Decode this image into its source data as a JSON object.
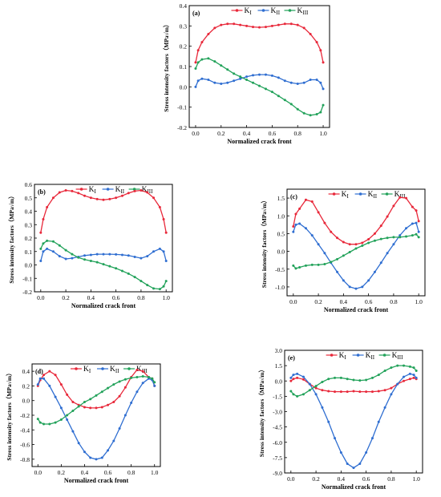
{
  "figure": {
    "xlabel": "Normalized crack front",
    "ylabel": "Stress intensity factors（MPa√m）"
  },
  "colors": {
    "KI": "#e8283a",
    "KII": "#2f6ed1",
    "KIII": "#22a25a"
  },
  "legend": [
    "KI",
    "KII",
    "KIII"
  ],
  "chart_data": [
    {
      "type": "line",
      "label": "(a)",
      "xlabel": "Normalized crack front",
      "ylabel": "Stress intensity factors（MPa√m）",
      "xlim": [
        -0.05,
        1.05
      ],
      "ylim": [
        -0.2,
        0.4
      ],
      "xticks": [
        "0.0",
        "0.2",
        "0.4",
        "0.6",
        "0.8",
        "1.0"
      ],
      "yticks": [
        "-0.2",
        "-0.1",
        "0.0",
        "0.1",
        "0.2",
        "0.3",
        "0.4"
      ],
      "legend_position": "top",
      "series": [
        {
          "name": "KI",
          "color": "#e8283a",
          "x": [
            0.0,
            0.02,
            0.05,
            0.1,
            0.15,
            0.2,
            0.25,
            0.3,
            0.35,
            0.4,
            0.45,
            0.5,
            0.55,
            0.6,
            0.65,
            0.7,
            0.75,
            0.8,
            0.85,
            0.9,
            0.95,
            0.98,
            1.0
          ],
          "y": [
            0.12,
            0.18,
            0.22,
            0.26,
            0.29,
            0.305,
            0.31,
            0.31,
            0.305,
            0.3,
            0.295,
            0.293,
            0.295,
            0.3,
            0.305,
            0.31,
            0.31,
            0.305,
            0.29,
            0.26,
            0.22,
            0.18,
            0.12
          ]
        },
        {
          "name": "KII",
          "color": "#2f6ed1",
          "x": [
            0.0,
            0.02,
            0.05,
            0.1,
            0.15,
            0.2,
            0.25,
            0.3,
            0.35,
            0.4,
            0.45,
            0.5,
            0.55,
            0.6,
            0.65,
            0.7,
            0.75,
            0.8,
            0.85,
            0.9,
            0.95,
            0.98,
            1.0
          ],
          "y": [
            0.0,
            0.03,
            0.04,
            0.035,
            0.02,
            0.015,
            0.02,
            0.03,
            0.04,
            0.05,
            0.057,
            0.06,
            0.06,
            0.055,
            0.045,
            0.03,
            0.02,
            0.015,
            0.02,
            0.035,
            0.035,
            0.02,
            -0.01
          ]
        },
        {
          "name": "KIII",
          "color": "#22a25a",
          "x": [
            0.0,
            0.02,
            0.05,
            0.1,
            0.15,
            0.2,
            0.25,
            0.3,
            0.35,
            0.4,
            0.45,
            0.5,
            0.55,
            0.6,
            0.65,
            0.7,
            0.75,
            0.8,
            0.85,
            0.9,
            0.95,
            0.98,
            1.0
          ],
          "y": [
            0.09,
            0.12,
            0.135,
            0.14,
            0.125,
            0.105,
            0.085,
            0.065,
            0.05,
            0.035,
            0.02,
            0.005,
            -0.01,
            -0.025,
            -0.045,
            -0.065,
            -0.085,
            -0.11,
            -0.13,
            -0.14,
            -0.135,
            -0.125,
            -0.09
          ]
        }
      ]
    },
    {
      "type": "line",
      "label": "(b)",
      "xlabel": "Normalized crack front",
      "ylabel": "Stress intensity factors（MPa√m）",
      "xlim": [
        -0.05,
        1.05
      ],
      "ylim": [
        -0.2,
        0.6
      ],
      "xticks": [
        "0.0",
        "0.2",
        "0.4",
        "0.6",
        "0.8",
        "1.0"
      ],
      "yticks": [
        "-0.2",
        "-0.1",
        "0.0",
        "0.1",
        "0.2",
        "0.3",
        "0.4",
        "0.5",
        "0.6"
      ],
      "legend_position": "top",
      "series": [
        {
          "name": "KI",
          "color": "#e8283a",
          "x": [
            0.0,
            0.02,
            0.05,
            0.1,
            0.15,
            0.2,
            0.25,
            0.3,
            0.35,
            0.4,
            0.45,
            0.5,
            0.55,
            0.6,
            0.65,
            0.7,
            0.75,
            0.8,
            0.85,
            0.9,
            0.95,
            0.98,
            1.0
          ],
          "y": [
            0.24,
            0.34,
            0.43,
            0.5,
            0.54,
            0.555,
            0.55,
            0.535,
            0.515,
            0.5,
            0.49,
            0.485,
            0.49,
            0.5,
            0.515,
            0.535,
            0.55,
            0.555,
            0.54,
            0.5,
            0.43,
            0.34,
            0.24
          ]
        },
        {
          "name": "KII",
          "color": "#2f6ed1",
          "x": [
            0.0,
            0.02,
            0.05,
            0.1,
            0.15,
            0.2,
            0.25,
            0.3,
            0.35,
            0.4,
            0.45,
            0.5,
            0.55,
            0.6,
            0.65,
            0.7,
            0.75,
            0.8,
            0.85,
            0.9,
            0.95,
            0.98,
            1.0
          ],
          "y": [
            0.03,
            0.1,
            0.12,
            0.1,
            0.065,
            0.045,
            0.05,
            0.06,
            0.07,
            0.075,
            0.08,
            0.08,
            0.08,
            0.078,
            0.075,
            0.07,
            0.06,
            0.05,
            0.065,
            0.1,
            0.12,
            0.1,
            0.03
          ]
        },
        {
          "name": "KIII",
          "color": "#22a25a",
          "x": [
            0.0,
            0.02,
            0.05,
            0.1,
            0.15,
            0.2,
            0.25,
            0.3,
            0.35,
            0.4,
            0.45,
            0.5,
            0.55,
            0.6,
            0.65,
            0.7,
            0.75,
            0.8,
            0.85,
            0.9,
            0.95,
            0.98,
            1.0
          ],
          "y": [
            0.12,
            0.16,
            0.18,
            0.175,
            0.145,
            0.11,
            0.08,
            0.055,
            0.04,
            0.03,
            0.02,
            0.005,
            -0.01,
            -0.025,
            -0.045,
            -0.065,
            -0.09,
            -0.12,
            -0.15,
            -0.175,
            -0.18,
            -0.16,
            -0.12
          ]
        }
      ]
    },
    {
      "type": "line",
      "label": "(c)",
      "xlabel": "Normalized crack front",
      "ylabel": "Stress intensity factors（MPa√m）",
      "xlim": [
        -0.05,
        1.05
      ],
      "ylim": [
        -1.25,
        1.75
      ],
      "xticks": [
        "0.0",
        "0.2",
        "0.4",
        "0.6",
        "0.8",
        "1.0"
      ],
      "yticks": [
        "-1.0",
        "-0.5",
        "0.0",
        "0.5",
        "1.0",
        "1.5"
      ],
      "legend_position": "top",
      "series": [
        {
          "name": "KI",
          "color": "#e8283a",
          "x": [
            0.0,
            0.02,
            0.05,
            0.1,
            0.15,
            0.2,
            0.25,
            0.3,
            0.35,
            0.4,
            0.45,
            0.5,
            0.55,
            0.6,
            0.65,
            0.7,
            0.75,
            0.8,
            0.85,
            0.9,
            0.95,
            0.98,
            1.0
          ],
          "y": [
            0.7,
            1.05,
            1.2,
            1.45,
            1.4,
            1.1,
            0.8,
            0.55,
            0.38,
            0.26,
            0.2,
            0.2,
            0.24,
            0.34,
            0.5,
            0.72,
            0.98,
            1.28,
            1.52,
            1.5,
            1.25,
            1.15,
            0.85
          ]
        },
        {
          "name": "KII",
          "color": "#2f6ed1",
          "x": [
            0.0,
            0.02,
            0.05,
            0.1,
            0.15,
            0.2,
            0.25,
            0.3,
            0.35,
            0.4,
            0.45,
            0.5,
            0.55,
            0.6,
            0.65,
            0.7,
            0.75,
            0.8,
            0.85,
            0.9,
            0.95,
            0.98,
            1.0
          ],
          "y": [
            0.55,
            0.75,
            0.78,
            0.65,
            0.45,
            0.2,
            -0.05,
            -0.32,
            -0.58,
            -0.82,
            -1.0,
            -1.05,
            -1.0,
            -0.82,
            -0.58,
            -0.32,
            -0.05,
            0.2,
            0.45,
            0.65,
            0.78,
            0.8,
            0.55
          ]
        },
        {
          "name": "KIII",
          "color": "#22a25a",
          "x": [
            0.0,
            0.02,
            0.05,
            0.1,
            0.15,
            0.2,
            0.25,
            0.3,
            0.35,
            0.4,
            0.45,
            0.5,
            0.55,
            0.6,
            0.65,
            0.7,
            0.75,
            0.8,
            0.85,
            0.9,
            0.95,
            0.98,
            1.0
          ],
          "y": [
            -0.4,
            -0.48,
            -0.45,
            -0.4,
            -0.38,
            -0.38,
            -0.36,
            -0.3,
            -0.22,
            -0.12,
            -0.02,
            0.08,
            0.16,
            0.24,
            0.3,
            0.35,
            0.38,
            0.4,
            0.4,
            0.42,
            0.45,
            0.48,
            0.4
          ]
        }
      ]
    },
    {
      "type": "line",
      "label": "(d)",
      "xlabel": "Normalized crack front",
      "ylabel": "Stress intensity factors（MPa√m）",
      "xlim": [
        -0.05,
        1.05
      ],
      "ylim": [
        -0.9,
        0.5
      ],
      "xticks": [
        "0.0",
        "0.2",
        "0.4",
        "0.6",
        "0.8",
        "1.0"
      ],
      "yticks": [
        "-0.8",
        "-0.6",
        "-0.4",
        "-0.2",
        "0.0",
        "0.2",
        "0.4"
      ],
      "legend_position": "top",
      "series": [
        {
          "name": "KI",
          "color": "#e8283a",
          "x": [
            0.0,
            0.02,
            0.05,
            0.1,
            0.15,
            0.2,
            0.25,
            0.3,
            0.35,
            0.4,
            0.45,
            0.5,
            0.55,
            0.6,
            0.65,
            0.7,
            0.75,
            0.8,
            0.85,
            0.9,
            0.95,
            0.98,
            1.0
          ],
          "y": [
            0.2,
            0.28,
            0.35,
            0.4,
            0.35,
            0.22,
            0.08,
            -0.02,
            -0.06,
            -0.09,
            -0.1,
            -0.1,
            -0.09,
            -0.06,
            -0.02,
            0.06,
            0.18,
            0.32,
            0.42,
            0.4,
            0.32,
            0.3,
            0.2
          ]
        },
        {
          "name": "KII",
          "color": "#2f6ed1",
          "x": [
            0.0,
            0.02,
            0.05,
            0.1,
            0.15,
            0.2,
            0.25,
            0.3,
            0.35,
            0.4,
            0.45,
            0.5,
            0.55,
            0.6,
            0.65,
            0.7,
            0.75,
            0.8,
            0.85,
            0.9,
            0.95,
            0.98,
            1.0
          ],
          "y": [
            0.22,
            0.3,
            0.3,
            0.2,
            0.05,
            -0.1,
            -0.26,
            -0.42,
            -0.58,
            -0.7,
            -0.78,
            -0.8,
            -0.78,
            -0.68,
            -0.55,
            -0.38,
            -0.2,
            -0.03,
            0.12,
            0.24,
            0.3,
            0.28,
            0.2
          ]
        },
        {
          "name": "KIII",
          "color": "#22a25a",
          "x": [
            0.0,
            0.02,
            0.05,
            0.1,
            0.15,
            0.2,
            0.25,
            0.3,
            0.35,
            0.4,
            0.45,
            0.5,
            0.55,
            0.6,
            0.65,
            0.7,
            0.75,
            0.8,
            0.85,
            0.9,
            0.95,
            0.98,
            1.0
          ],
          "y": [
            -0.25,
            -0.3,
            -0.32,
            -0.32,
            -0.3,
            -0.26,
            -0.2,
            -0.14,
            -0.08,
            -0.02,
            0.02,
            0.07,
            0.12,
            0.17,
            0.22,
            0.26,
            0.29,
            0.31,
            0.32,
            0.33,
            0.32,
            0.3,
            0.25
          ]
        }
      ]
    },
    {
      "type": "line",
      "label": "(e)",
      "xlabel": "Normalized crack front",
      "ylabel": "Stress intensity factors（MPa√m）",
      "xlim": [
        -0.05,
        1.05
      ],
      "ylim": [
        -9.0,
        3.0
      ],
      "xticks": [
        "0.0",
        "0.2",
        "0.4",
        "0.6",
        "0.8",
        "1.0"
      ],
      "yticks": [
        "-9.0",
        "-7.5",
        "-6.0",
        "-4.5",
        "-3.0",
        "-1.5",
        "0.0",
        "1.5",
        "3.0"
      ],
      "legend_position": "top",
      "series": [
        {
          "name": "KI",
          "color": "#e8283a",
          "x": [
            0.0,
            0.02,
            0.05,
            0.1,
            0.15,
            0.2,
            0.25,
            0.3,
            0.35,
            0.4,
            0.45,
            0.5,
            0.55,
            0.6,
            0.65,
            0.7,
            0.75,
            0.8,
            0.85,
            0.9,
            0.95,
            0.98,
            1.0
          ],
          "y": [
            0.0,
            0.2,
            0.3,
            0.15,
            -0.3,
            -0.7,
            -0.9,
            -1.0,
            -1.05,
            -1.05,
            -1.05,
            -1.0,
            -1.05,
            -1.05,
            -1.05,
            -1.0,
            -0.9,
            -0.7,
            -0.3,
            0.0,
            0.2,
            0.3,
            0.2
          ]
        },
        {
          "name": "KII",
          "color": "#2f6ed1",
          "x": [
            0.0,
            0.02,
            0.05,
            0.1,
            0.15,
            0.2,
            0.25,
            0.3,
            0.35,
            0.4,
            0.45,
            0.5,
            0.55,
            0.6,
            0.65,
            0.7,
            0.75,
            0.8,
            0.85,
            0.9,
            0.95,
            0.98,
            1.0
          ],
          "y": [
            0.3,
            0.6,
            0.7,
            0.4,
            -0.3,
            -1.3,
            -2.6,
            -4.0,
            -5.6,
            -7.0,
            -8.1,
            -8.5,
            -8.1,
            -7.0,
            -5.6,
            -4.0,
            -2.6,
            -1.3,
            -0.3,
            0.4,
            0.7,
            0.6,
            0.3
          ]
        },
        {
          "name": "KIII",
          "color": "#22a25a",
          "x": [
            0.0,
            0.02,
            0.05,
            0.1,
            0.15,
            0.2,
            0.25,
            0.3,
            0.35,
            0.4,
            0.45,
            0.5,
            0.55,
            0.6,
            0.65,
            0.7,
            0.75,
            0.8,
            0.85,
            0.9,
            0.95,
            0.98,
            1.0
          ],
          "y": [
            -1.0,
            -1.3,
            -1.5,
            -1.3,
            -0.9,
            -0.5,
            -0.1,
            0.2,
            0.3,
            0.3,
            0.2,
            0.1,
            0.05,
            0.1,
            0.3,
            0.6,
            1.0,
            1.3,
            1.5,
            1.5,
            1.4,
            1.3,
            1.0
          ]
        }
      ]
    }
  ]
}
